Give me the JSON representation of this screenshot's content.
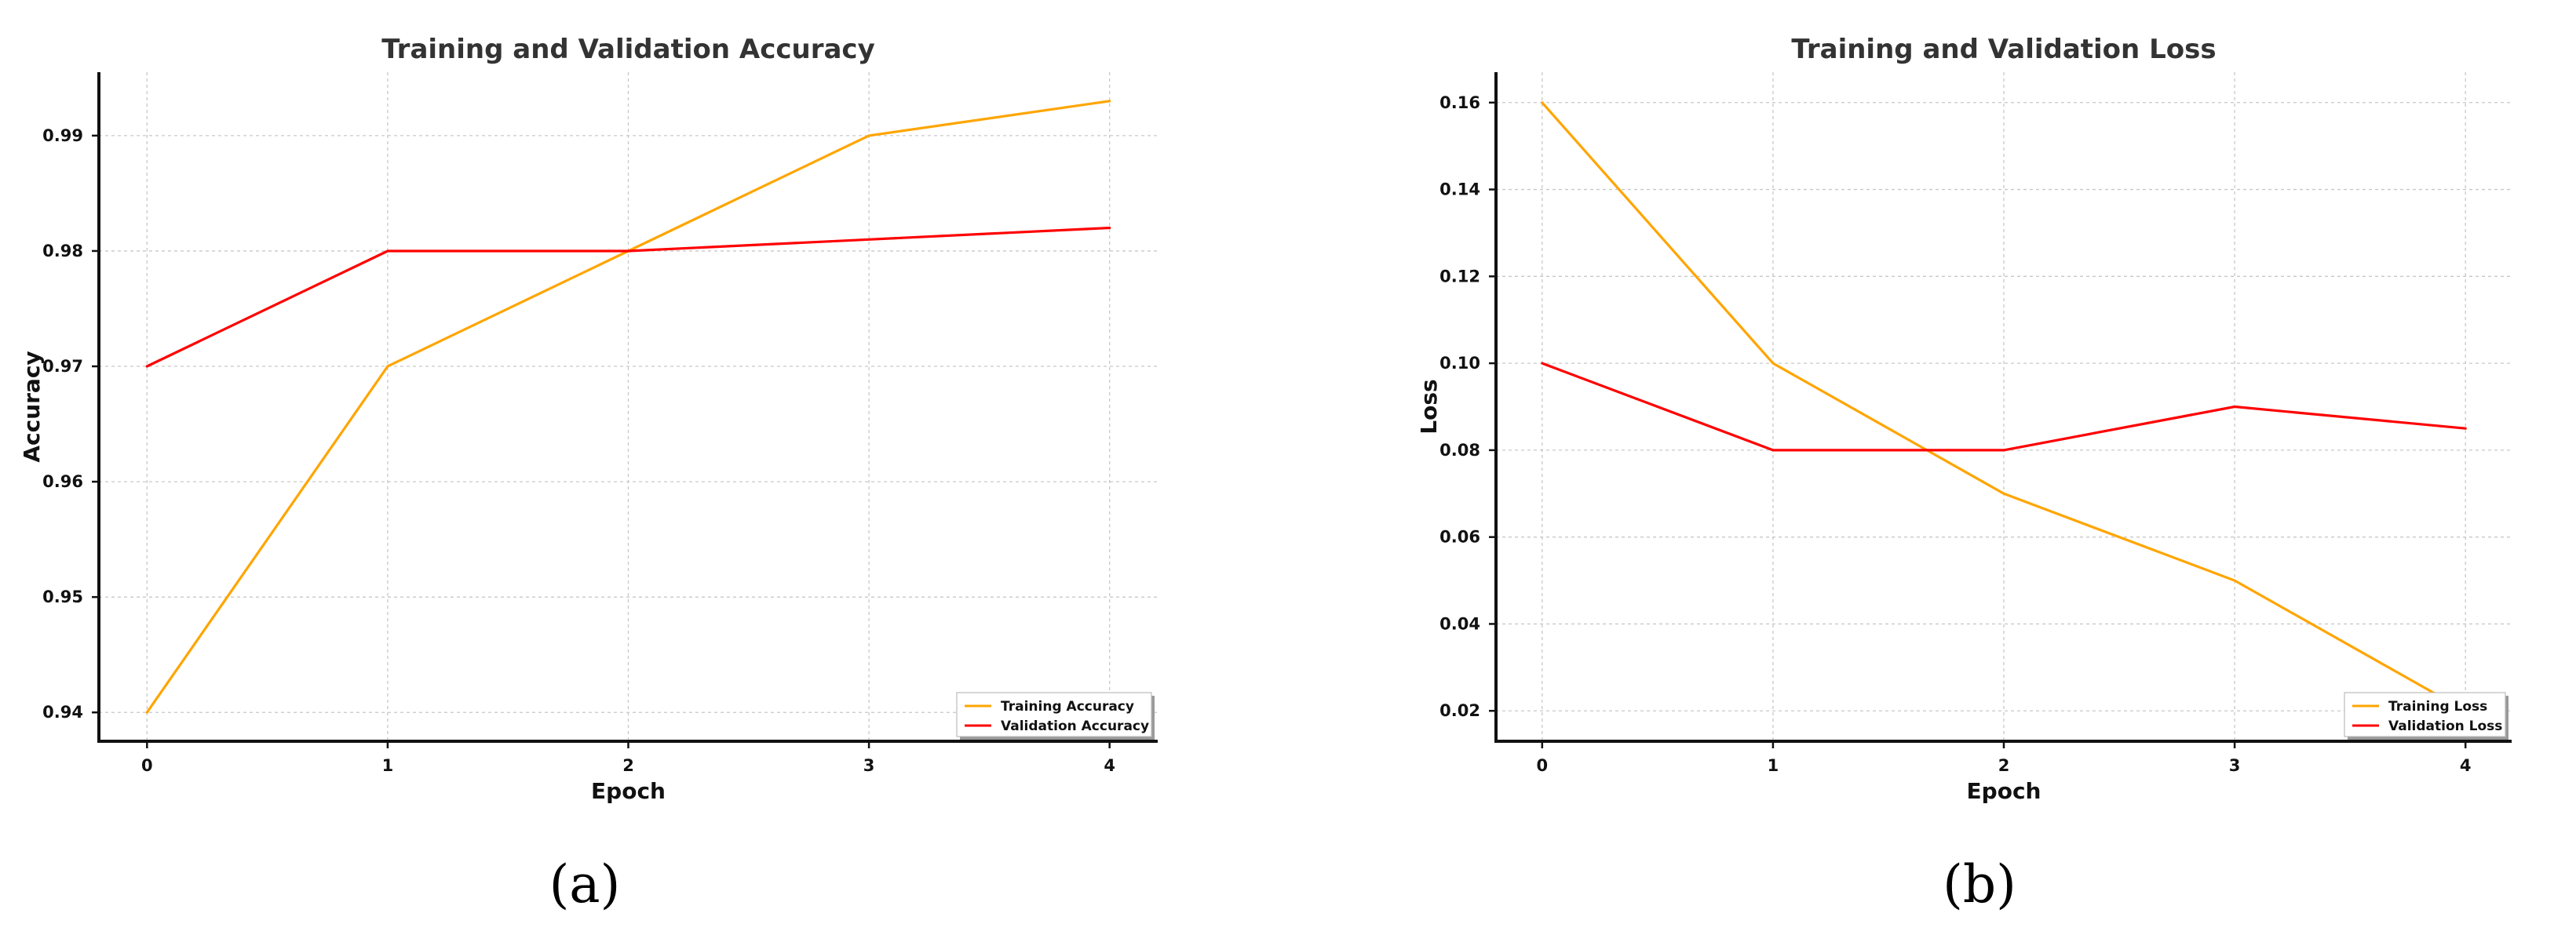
{
  "chart_data": [
    {
      "type": "line",
      "title": "Training and Validation Accuracy",
      "xlabel": "Epoch",
      "ylabel": "Accuracy",
      "x": [
        0,
        1,
        2,
        3,
        4
      ],
      "xticks": [
        "0",
        "1",
        "2",
        "3",
        "4"
      ],
      "yticks": [
        "0.94",
        "0.95",
        "0.96",
        "0.97",
        "0.98",
        "0.99"
      ],
      "xlim": [
        -0.2,
        4.2
      ],
      "ylim": [
        0.9375,
        0.9955
      ],
      "grid": true,
      "legend_position": "bottom-right",
      "series": [
        {
          "name": "Training Accuracy",
          "color": "#FFA500",
          "values": [
            0.94,
            0.97,
            0.98,
            0.99,
            0.993
          ]
        },
        {
          "name": "Validation Accuracy",
          "color": "#FF0000",
          "values": [
            0.97,
            0.98,
            0.98,
            0.981,
            0.982
          ]
        }
      ],
      "panel_label": "(a)"
    },
    {
      "type": "line",
      "title": "Training and Validation Loss",
      "xlabel": "Epoch",
      "ylabel": "Loss",
      "x": [
        0,
        1,
        2,
        3,
        4
      ],
      "xticks": [
        "0",
        "1",
        "2",
        "3",
        "4"
      ],
      "yticks": [
        "0.02",
        "0.04",
        "0.06",
        "0.08",
        "0.10",
        "0.12",
        "0.14",
        "0.16"
      ],
      "xlim": [
        -0.2,
        4.2
      ],
      "ylim": [
        0.013,
        0.167
      ],
      "grid": true,
      "legend_position": "bottom-right",
      "series": [
        {
          "name": "Training Loss",
          "color": "#FFA500",
          "values": [
            0.16,
            0.1,
            0.07,
            0.05,
            0.02
          ]
        },
        {
          "name": "Validation Loss",
          "color": "#FF0000",
          "values": [
            0.1,
            0.08,
            0.08,
            0.09,
            0.085
          ]
        }
      ],
      "panel_label": "(b)"
    }
  ]
}
